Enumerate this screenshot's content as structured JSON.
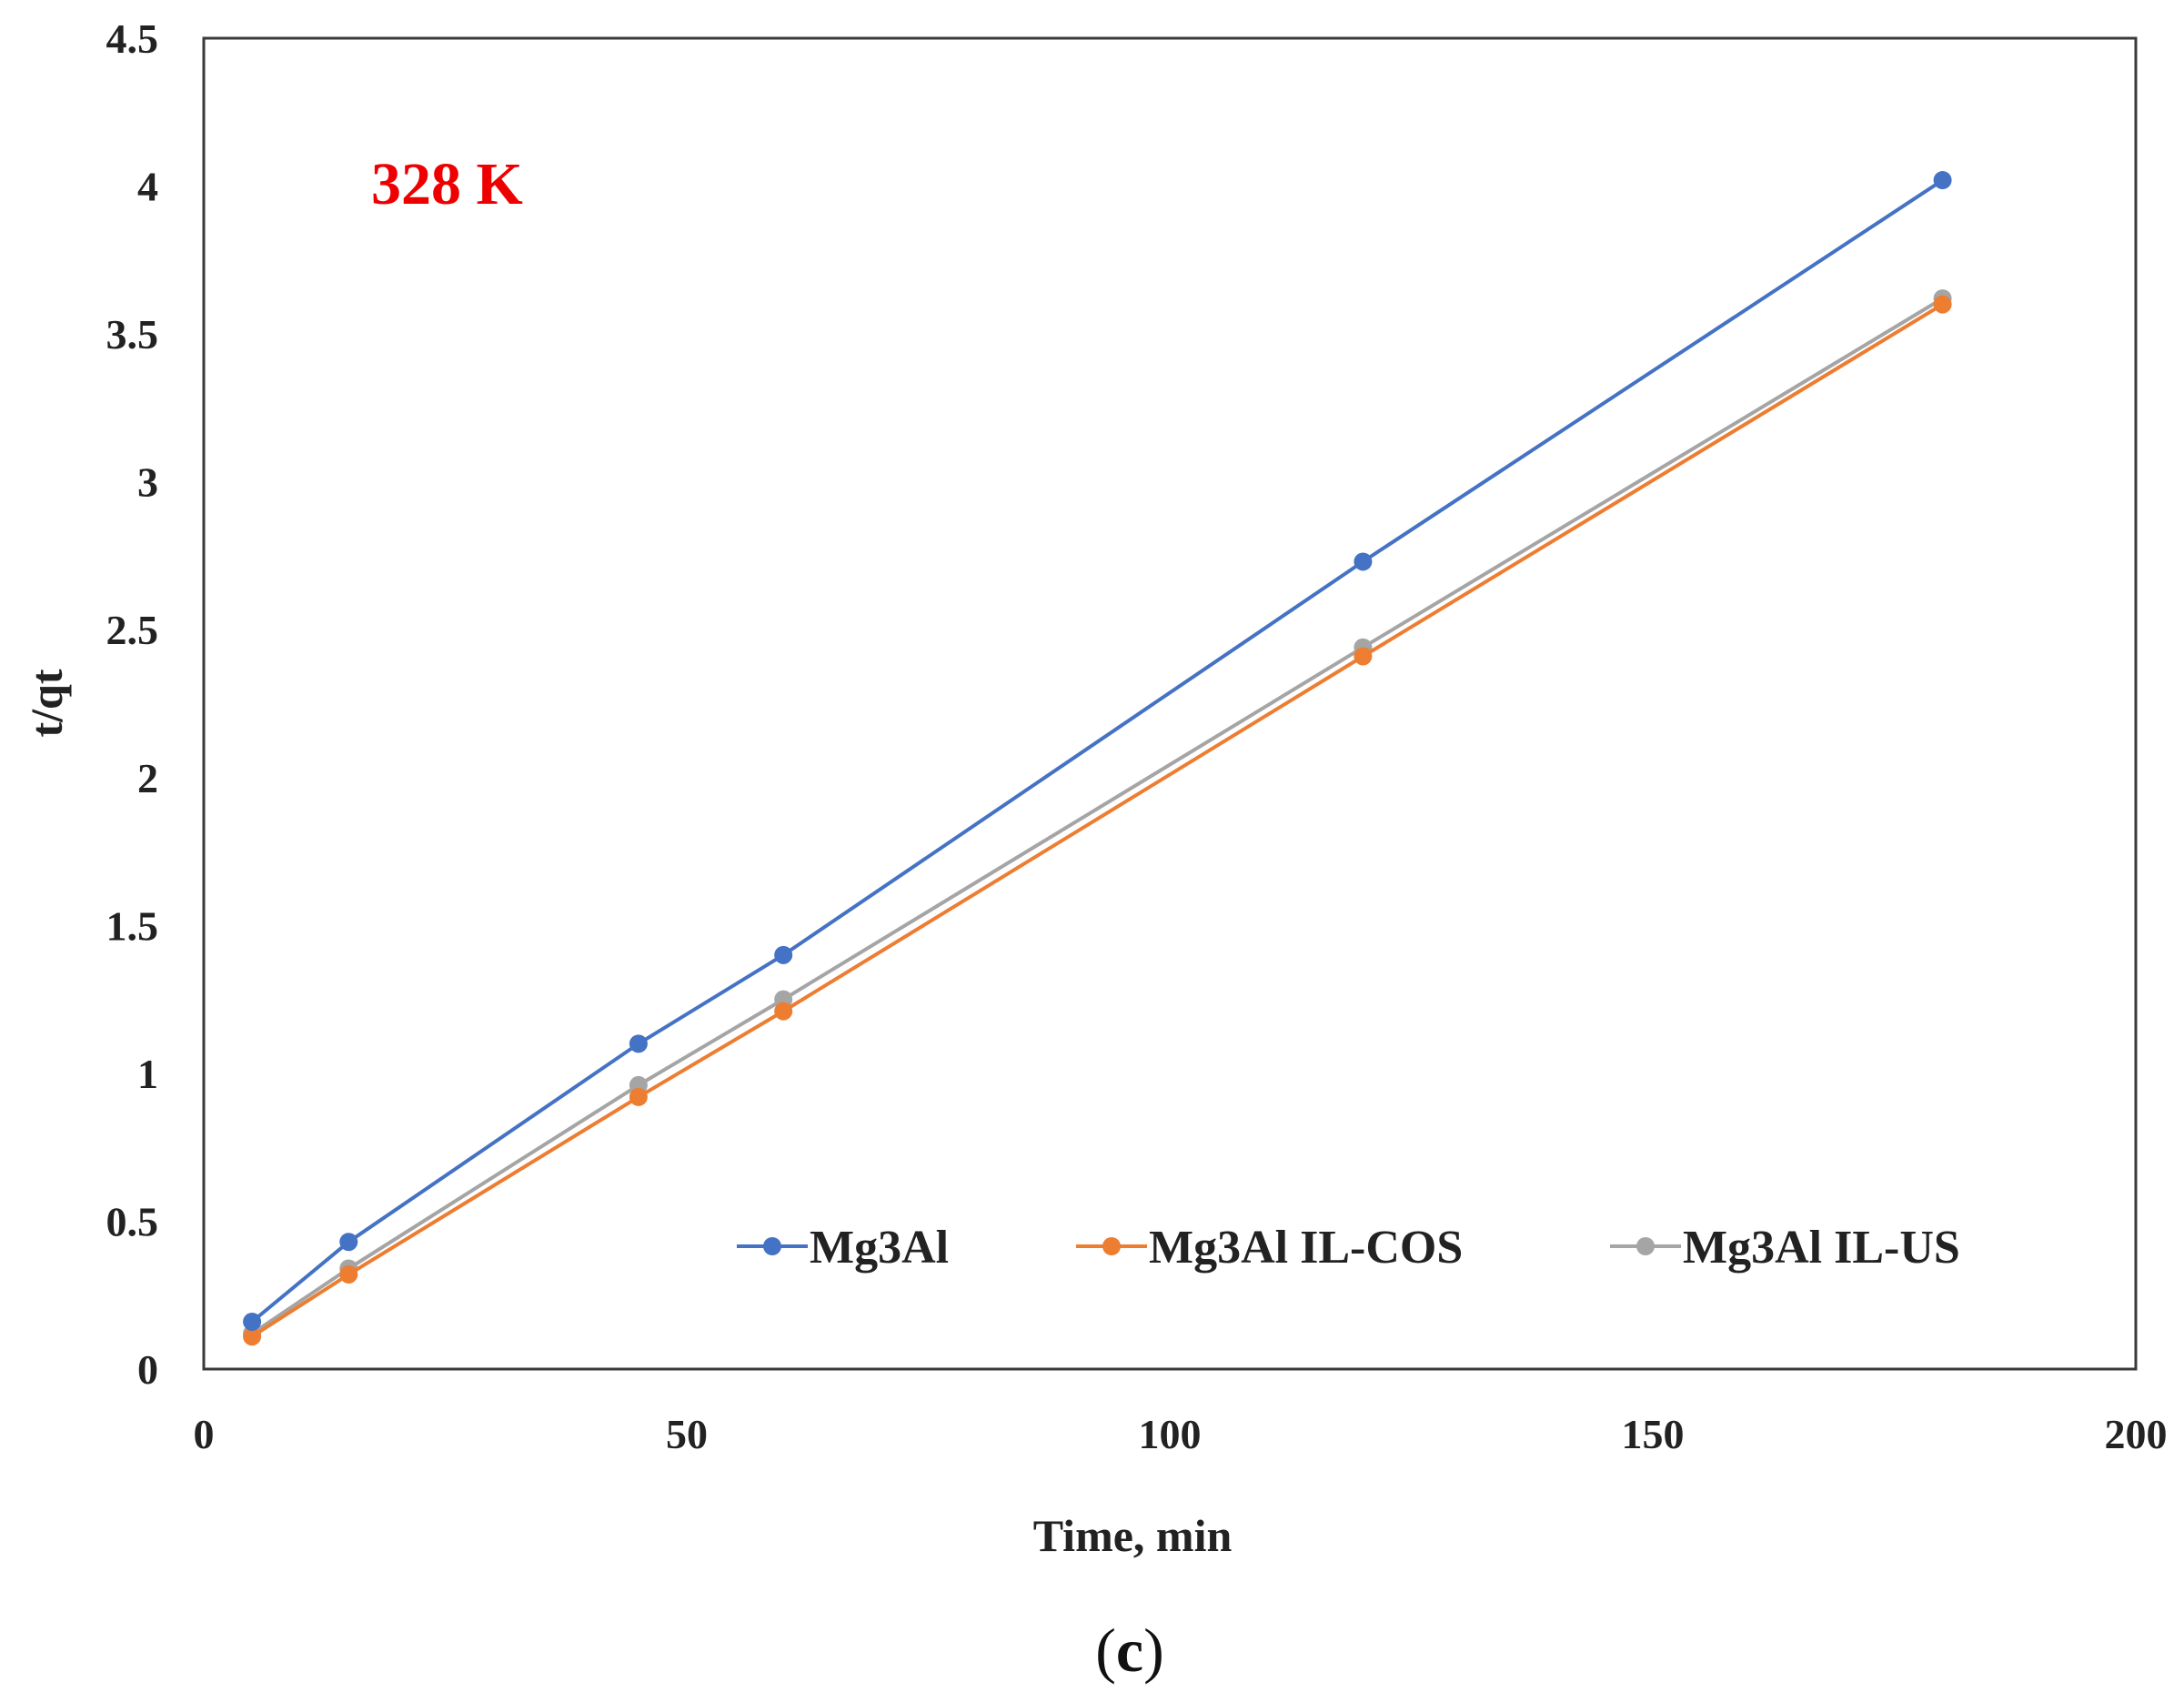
{
  "chart_data": {
    "type": "line",
    "title": "",
    "annotation": "328 K",
    "annotation_color": "#ee0000",
    "xlabel": "Time, min",
    "ylabel": "t/qt",
    "xlim": [
      0,
      200
    ],
    "ylim": [
      0,
      4.5
    ],
    "x_ticks": [
      0,
      50,
      100,
      150,
      200
    ],
    "x_tick_labels": [
      "0",
      "50",
      "100",
      "150",
      "200"
    ],
    "y_ticks": [
      0,
      0.5,
      1,
      1.5,
      2,
      2.5,
      3,
      3.5,
      4,
      4.5
    ],
    "y_tick_labels": [
      "0",
      "0.5",
      "1",
      "1.5",
      "2",
      "2.5",
      "3",
      "3.5",
      "4",
      "4.5"
    ],
    "grid": false,
    "legend_position": "bottom-inside",
    "series": [
      {
        "name": "Mg3Al",
        "color": "#4472c4",
        "x": [
          5,
          15,
          45,
          60,
          120,
          180
        ],
        "y": [
          0.16,
          0.43,
          1.1,
          1.4,
          2.73,
          4.02
        ]
      },
      {
        "name": "Mg3Al IL-COS",
        "color": "#ed7d31",
        "x": [
          5,
          15,
          45,
          60,
          120,
          180
        ],
        "y": [
          0.11,
          0.32,
          0.92,
          1.21,
          2.41,
          3.6
        ]
      },
      {
        "name": "Mg3Al IL-US",
        "color": "#a5a5a5",
        "x": [
          5,
          15,
          45,
          60,
          120,
          180
        ],
        "y": [
          0.12,
          0.34,
          0.96,
          1.25,
          2.44,
          3.62
        ]
      }
    ]
  },
  "caption": {
    "open": "(",
    "letter": "c",
    "close": ")"
  }
}
